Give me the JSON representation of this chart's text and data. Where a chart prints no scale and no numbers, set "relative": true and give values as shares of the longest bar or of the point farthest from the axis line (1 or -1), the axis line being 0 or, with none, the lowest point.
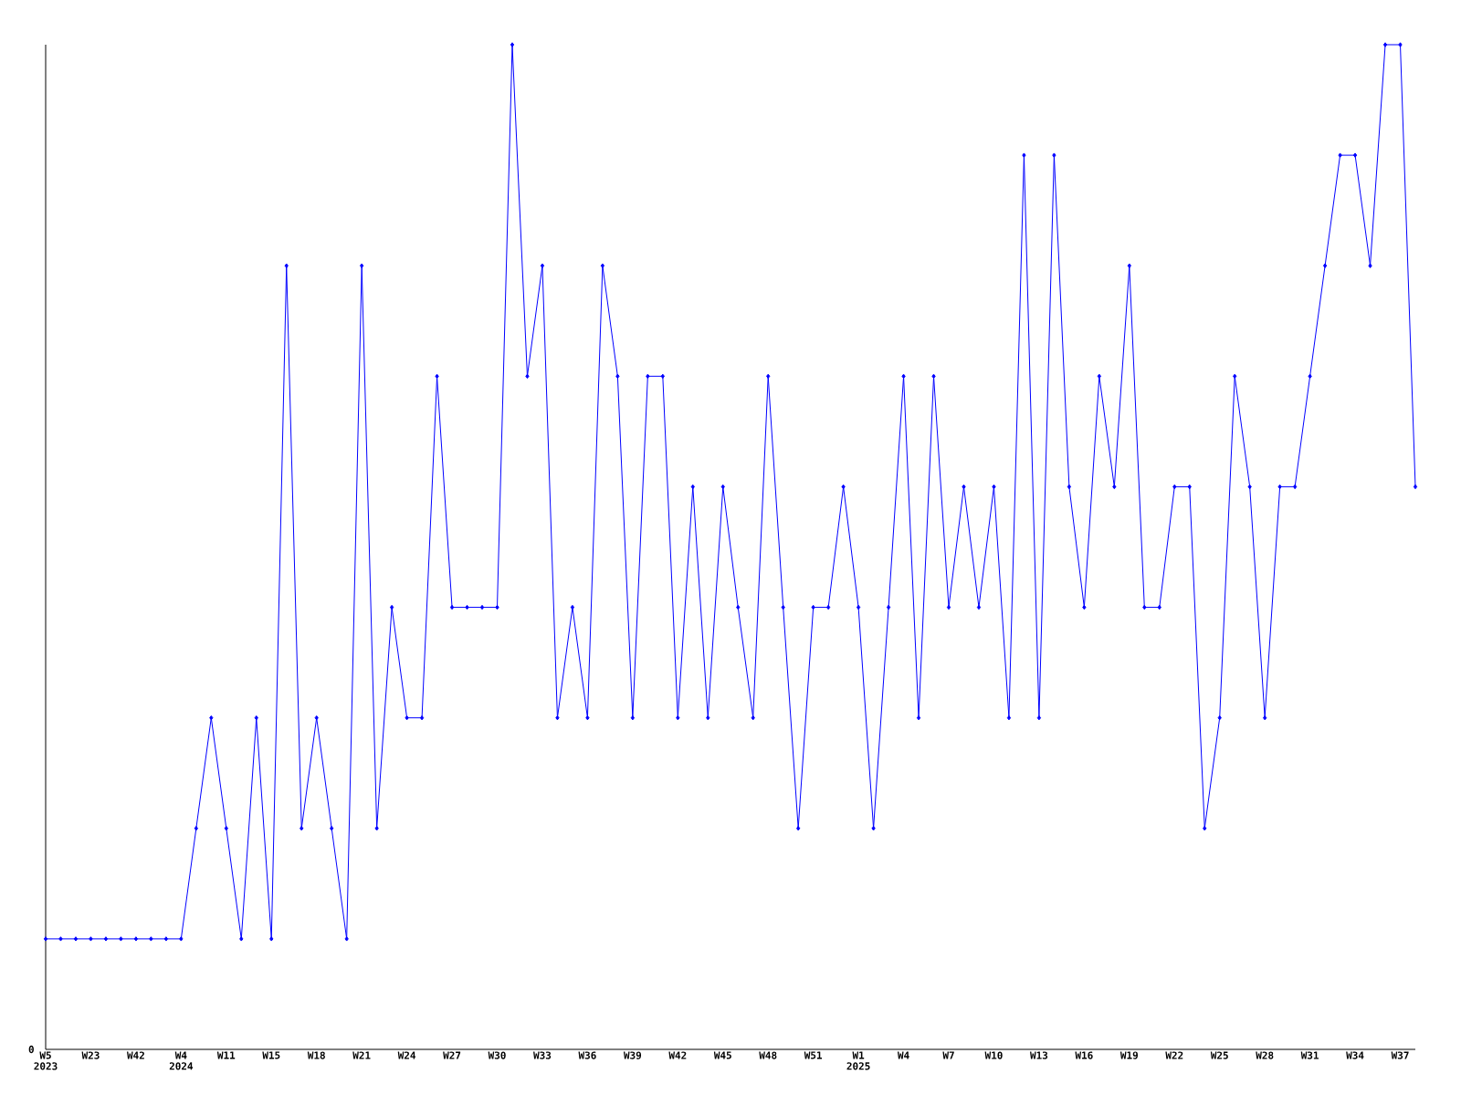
{
  "chart_data": {
    "type": "line",
    "relative": true,
    "color": "#0000ff",
    "marker": "diamond",
    "line_style": "solid",
    "grid": false,
    "annotations": [
      "0"
    ],
    "categories": [
      "W5 2023",
      null,
      null,
      "W23",
      null,
      null,
      "W42",
      null,
      null,
      "W4 2024",
      null,
      null,
      "W11",
      null,
      null,
      "W15",
      null,
      null,
      "W18",
      null,
      null,
      "W21",
      null,
      null,
      "W24",
      null,
      null,
      "W27",
      null,
      null,
      "W30",
      null,
      null,
      "W33",
      null,
      null,
      "W36",
      null,
      null,
      "W39",
      null,
      null,
      "W42",
      null,
      null,
      "W45",
      null,
      null,
      "W48",
      null,
      null,
      "W51",
      null,
      null,
      "W1 2025",
      null,
      null,
      "W4",
      null,
      null,
      "W7",
      null,
      null,
      "W10",
      null,
      null,
      "W13",
      null,
      null,
      "W16",
      null,
      null,
      "W19",
      null,
      null,
      "W22",
      null,
      null,
      "W25",
      null,
      null,
      "W28",
      null,
      null,
      "W31",
      null,
      null,
      "W34",
      null,
      null,
      "W37",
      null
    ],
    "values": [
      0.11,
      0.11,
      0.11,
      0.11,
      0.11,
      0.11,
      0.11,
      0.11,
      0.11,
      0.11,
      0.22,
      0.33,
      0.22,
      0.11,
      0.33,
      0.11,
      0.78,
      0.22,
      0.33,
      0.22,
      0.11,
      0.78,
      0.22,
      0.44,
      0.33,
      0.33,
      0.67,
      0.44,
      0.44,
      0.44,
      0.44,
      1,
      0.67,
      0.78,
      0.33,
      0.44,
      0.33,
      0.78,
      0.67,
      0.33,
      0.67,
      0.67,
      0.33,
      0.56,
      0.33,
      0.56,
      0.44,
      0.33,
      0.67,
      0.44,
      0.22,
      0.44,
      0.44,
      0.56,
      0.44,
      0.22,
      0.44,
      0.67,
      0.33,
      0.67,
      0.44,
      0.56,
      0.44,
      0.56,
      0.33,
      0.89,
      0.33,
      0.89,
      0.56,
      0.44,
      0.67,
      0.56,
      0.78,
      0.44,
      0.44,
      0.56,
      0.56,
      0.22,
      0.33,
      0.67,
      0.56,
      0.33,
      0.56,
      0.56,
      0.67,
      0.78,
      0.89,
      0.89,
      0.78,
      1,
      1,
      0.56
    ]
  }
}
